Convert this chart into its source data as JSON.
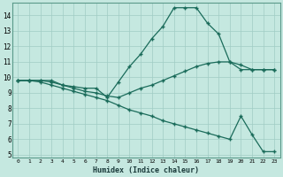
{
  "xlabel": "Humidex (Indice chaleur)",
  "background_color": "#c5e8e0",
  "grid_color": "#a0ccc4",
  "line_color": "#1a6b5a",
  "xlim": [
    -0.5,
    23.5
  ],
  "ylim": [
    4.8,
    14.8
  ],
  "yticks": [
    5,
    6,
    7,
    8,
    9,
    10,
    11,
    12,
    13,
    14
  ],
  "xticks": [
    0,
    1,
    2,
    3,
    4,
    5,
    6,
    7,
    8,
    9,
    10,
    11,
    12,
    13,
    14,
    15,
    16,
    17,
    18,
    19,
    20,
    21,
    22,
    23
  ],
  "line1_x": [
    0,
    1,
    2,
    3,
    4,
    5,
    6,
    7,
    8,
    9,
    10,
    11,
    12,
    13,
    14,
    15,
    16,
    17,
    18,
    19,
    20,
    21,
    22,
    23
  ],
  "line1_y": [
    9.8,
    9.8,
    9.8,
    9.8,
    9.5,
    9.4,
    9.3,
    9.3,
    8.7,
    9.7,
    10.7,
    11.5,
    12.5,
    13.3,
    14.5,
    14.5,
    14.5,
    13.5,
    12.8,
    11.0,
    10.5,
    10.5,
    10.5,
    10.5
  ],
  "line2_x": [
    0,
    1,
    2,
    3,
    4,
    5,
    6,
    7,
    8,
    9,
    10,
    11,
    12,
    13,
    14,
    15,
    16,
    17,
    18,
    19,
    20,
    21,
    22,
    23
  ],
  "line2_y": [
    9.8,
    9.8,
    9.8,
    9.7,
    9.5,
    9.3,
    9.1,
    9.0,
    8.8,
    8.7,
    9.0,
    9.3,
    9.5,
    9.8,
    10.1,
    10.4,
    10.7,
    10.9,
    11.0,
    11.0,
    10.8,
    10.5,
    10.5,
    10.5
  ],
  "line3_x": [
    0,
    1,
    2,
    3,
    4,
    5,
    6,
    7,
    8,
    9,
    10,
    11,
    12,
    13,
    14,
    15,
    16,
    17,
    18,
    19,
    20,
    21,
    22,
    23
  ],
  "line3_y": [
    9.8,
    9.8,
    9.7,
    9.5,
    9.3,
    9.1,
    8.9,
    8.7,
    8.5,
    8.2,
    7.9,
    7.7,
    7.5,
    7.2,
    7.0,
    6.8,
    6.6,
    6.4,
    6.2,
    6.0,
    7.5,
    6.3,
    5.2,
    5.2
  ]
}
